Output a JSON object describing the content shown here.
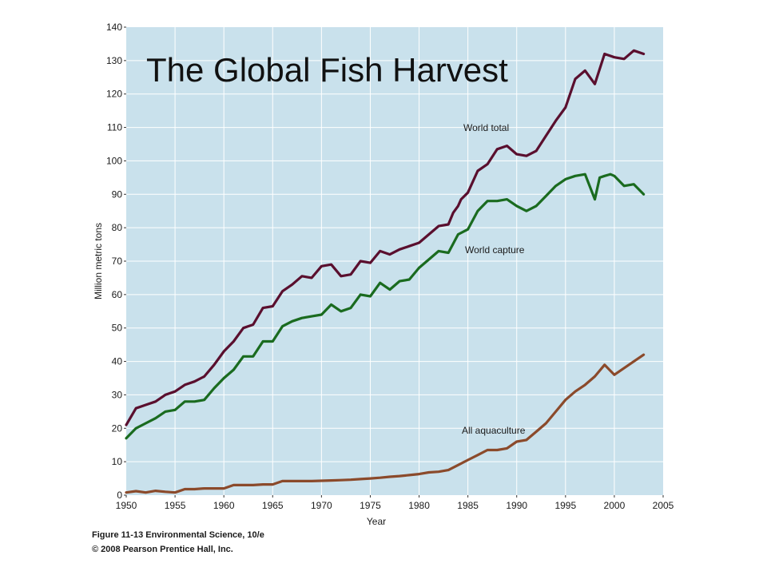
{
  "chart_data": {
    "type": "line",
    "title": "The Global Fish Harvest",
    "xlabel": "Year",
    "ylabel": "Million metric tons",
    "xlim": [
      1950,
      2005
    ],
    "ylim": [
      0,
      140
    ],
    "xticks": [
      "1950",
      "1955",
      "1960",
      "1965",
      "1970",
      "1975",
      "1980",
      "1985",
      "1990",
      "1995",
      "2000",
      "2005"
    ],
    "yticks": [
      "0",
      "10",
      "20",
      "30",
      "40",
      "50",
      "60",
      "70",
      "80",
      "90",
      "100",
      "110",
      "120",
      "130",
      "140"
    ],
    "grid": true,
    "series": [
      {
        "name": "World total",
        "color": "#5a0f2e",
        "x": [
          1950,
          1951,
          1952,
          1953,
          1954,
          1955,
          1956,
          1957,
          1958,
          1959,
          1960,
          1961,
          1962,
          1963,
          1964,
          1965,
          1966,
          1967,
          1968,
          1969,
          1970,
          1971,
          1972,
          1973,
          1974,
          1975,
          1976,
          1977,
          1978,
          1979,
          1980,
          1981,
          1982,
          1983,
          1983.5,
          1984,
          1984.3,
          1985,
          1986,
          1987,
          1988,
          1989,
          1990,
          1991,
          1992,
          1993,
          1994,
          1995,
          1996,
          1997,
          1998,
          1999,
          2000,
          2001,
          2002,
          2003
        ],
        "y": [
          21,
          26,
          27,
          28,
          30,
          31,
          33,
          34,
          35.5,
          39,
          43,
          46,
          50,
          51,
          56,
          56.5,
          61,
          63,
          65.5,
          65,
          68.5,
          69,
          65.5,
          66,
          70,
          69.5,
          73,
          72,
          73.5,
          74.5,
          75.5,
          78,
          80.5,
          81,
          84.5,
          86.5,
          88.5,
          90.5,
          97,
          99,
          103.5,
          104.5,
          102,
          101.5,
          103,
          107.5,
          112,
          116,
          124.5,
          127,
          123,
          132,
          131,
          130.5,
          133,
          132
        ]
      },
      {
        "name": "World capture",
        "color": "#1a6b1f",
        "x": [
          1950,
          1951,
          1952,
          1953,
          1954,
          1955,
          1956,
          1957,
          1958,
          1959,
          1960,
          1961,
          1962,
          1963,
          1964,
          1965,
          1966,
          1967,
          1968,
          1969,
          1970,
          1971,
          1972,
          1973,
          1974,
          1975,
          1976,
          1977,
          1978,
          1979,
          1980,
          1981,
          1982,
          1983,
          1984,
          1985,
          1986,
          1987,
          1988,
          1989,
          1990,
          1991,
          1992,
          1993,
          1994,
          1995,
          1996,
          1997,
          1998,
          1998.5,
          1999,
          1999.6,
          2000,
          2001,
          2002,
          2003
        ],
        "y": [
          17,
          20,
          21.5,
          23,
          25,
          25.5,
          28,
          28,
          28.5,
          32,
          35,
          37.5,
          41.5,
          41.5,
          46,
          46,
          50.5,
          52,
          53,
          53.5,
          54,
          57,
          55,
          56,
          60,
          59.5,
          63.5,
          61.5,
          64,
          64.5,
          68,
          70.5,
          73,
          72.5,
          78,
          79.5,
          85,
          88,
          88,
          88.5,
          86.5,
          85,
          86.5,
          89.5,
          92.5,
          94.5,
          95.5,
          96,
          88.5,
          95,
          95.5,
          96,
          95.5,
          92.5,
          93,
          90
        ]
      },
      {
        "name": "All aquaculture",
        "color": "#8b4a2b",
        "x": [
          1950,
          1951,
          1952,
          1953,
          1954,
          1955,
          1956,
          1957,
          1958,
          1959,
          1960,
          1961,
          1962,
          1963,
          1964,
          1965,
          1966,
          1967,
          1968,
          1969,
          1970,
          1971,
          1972,
          1973,
          1974,
          1975,
          1976,
          1977,
          1978,
          1979,
          1980,
          1981,
          1982,
          1983,
          1984,
          1985,
          1986,
          1987,
          1988,
          1989,
          1990,
          1991,
          1992,
          1993,
          1994,
          1995,
          1996,
          1997,
          1998,
          1999,
          2000,
          2001,
          2002,
          2003
        ],
        "y": [
          0.8,
          1.2,
          0.8,
          1.3,
          1,
          0.8,
          1.8,
          1.8,
          2,
          2,
          2,
          3,
          3,
          3,
          3.2,
          3.2,
          4.2,
          4.2,
          4.2,
          4.2,
          4.3,
          4.4,
          4.5,
          4.6,
          4.8,
          5,
          5.2,
          5.5,
          5.7,
          6,
          6.3,
          6.8,
          7,
          7.5,
          9,
          10.5,
          12,
          13.5,
          13.5,
          14,
          16,
          16.5,
          19,
          21.5,
          25,
          28.5,
          31,
          33,
          35.5,
          39,
          36,
          38,
          40,
          42
        ]
      }
    ],
    "annotations": [
      "World total",
      "World capture",
      "All aquaculture"
    ]
  },
  "caption": {
    "line1": "Figure 11-13  Environmental Science, 10/e",
    "line2": "© 2008 Pearson Prentice Hall, Inc."
  }
}
